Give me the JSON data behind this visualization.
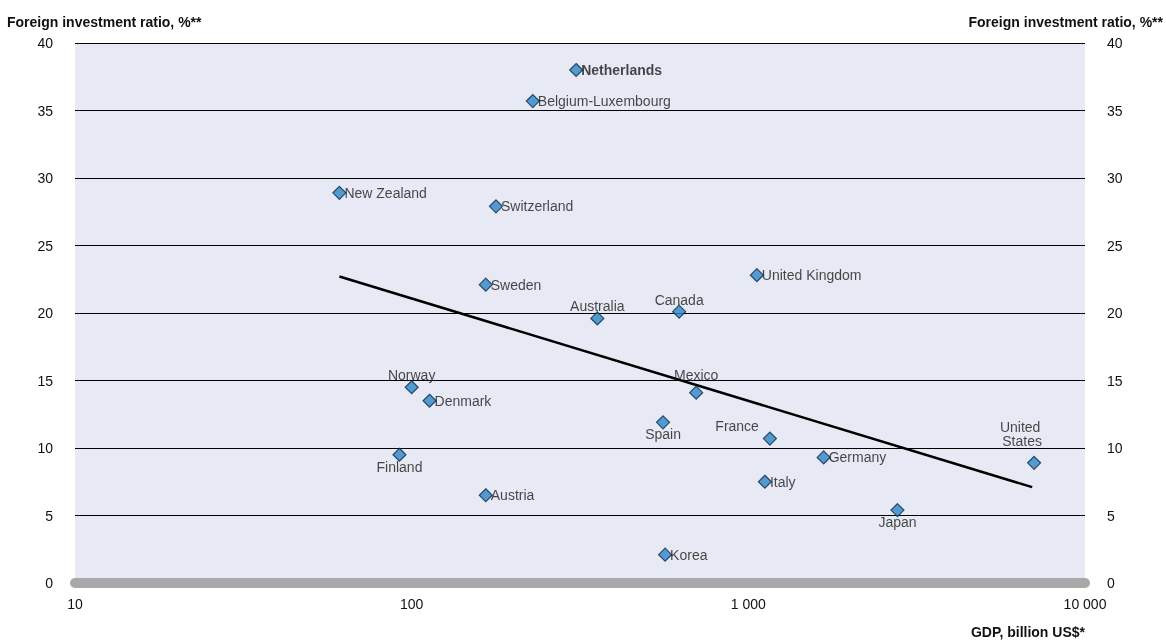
{
  "chart_data": {
    "type": "scatter",
    "ylabel": "Foreign investment ratio, %**",
    "y2label": "Foreign investment ratio, %**",
    "xlabel": "GDP, billion US$*",
    "log": "x",
    "xlim": [
      10,
      10000
    ],
    "xticks": [
      10,
      100,
      {
        "value": 1000,
        "label": "1 000"
      },
      {
        "value": 10000,
        "label": "10 000"
      }
    ],
    "ylim": [
      0,
      40
    ],
    "yticks": [
      0,
      5,
      10,
      15,
      20,
      25,
      30,
      35,
      40
    ],
    "y2lim": [
      0,
      40
    ],
    "y2ticks": [
      0,
      5,
      10,
      15,
      20,
      25,
      30,
      35,
      40
    ],
    "grid": "y",
    "marker": "diamond",
    "series": [
      {
        "color": "#2e86c8",
        "x": [
          308,
          229,
          61,
          178,
          166,
          1060,
          356,
          623,
          100,
          113,
          700,
          558,
          1159,
          92,
          1674,
          7060,
          1120,
          166,
          2773,
          566
        ],
        "values": [
          38,
          35.7,
          28.9,
          27.9,
          22.1,
          22.8,
          19.6,
          20.1,
          14.5,
          13.5,
          14.1,
          11.9,
          10.7,
          9.5,
          9.3,
          8.9,
          7.5,
          6.5,
          5.4,
          2.1
        ]
      },
      {
        "type": "line",
        "color": "#000000",
        "marker": "none",
        "x": [
          61,
          6970
        ],
        "values": [
          22.7,
          7.1
        ]
      }
    ],
    "annotations": [
      {
        "text": "Netherlands",
        "x": 308,
        "y": 38
      },
      {
        "text": "Belgium-Luxembourg",
        "x": 229,
        "y": 35.7
      },
      {
        "text": "New Zealand",
        "x": 61,
        "y": 28.9
      },
      {
        "text": "Switzerland",
        "x": 178,
        "y": 27.9
      },
      {
        "text": "Sweden",
        "x": 166,
        "y": 22.1
      },
      {
        "text": "United Kingdom",
        "x": 1060,
        "y": 22.8
      },
      {
        "text": "Australia",
        "x": 356,
        "y": 19.6
      },
      {
        "text": "Canada",
        "x": 623,
        "y": 20.1
      },
      {
        "text": "Norway",
        "x": 100,
        "y": 14.5
      },
      {
        "text": "Denmark",
        "x": 113,
        "y": 13.5
      },
      {
        "text": "Mexico",
        "x": 700,
        "y": 14.1
      },
      {
        "text": "Spain",
        "x": 558,
        "y": 11.9
      },
      {
        "text": "France",
        "x": 1159,
        "y": 10.7
      },
      {
        "text": "Finland",
        "x": 92,
        "y": 9.5
      },
      {
        "text": "Germany",
        "x": 1674,
        "y": 9.3
      },
      {
        "text": "United States",
        "x": 7060,
        "y": 8.9
      },
      {
        "text": "Italy",
        "x": 1120,
        "y": 7.5
      },
      {
        "text": "Austria",
        "x": 166,
        "y": 6.5
      },
      {
        "text": "Japan",
        "x": 2773,
        "y": 5.4
      },
      {
        "text": "Korea",
        "x": 566,
        "y": 2.1
      }
    ]
  }
}
